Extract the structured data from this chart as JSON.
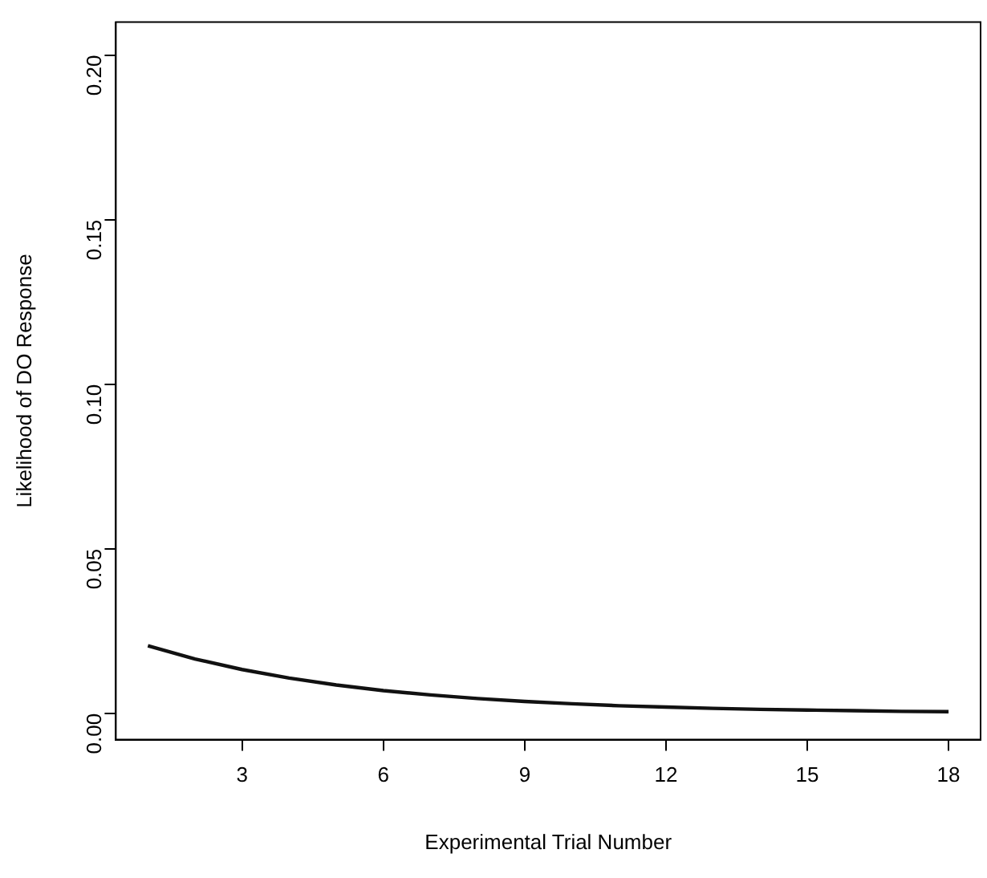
{
  "chart_data": {
    "type": "line",
    "xlabel": "Experimental Trial Number",
    "ylabel": "Likelihood of DO Response",
    "x": [
      1,
      2,
      3,
      4,
      5,
      6,
      7,
      8,
      9,
      10,
      11,
      12,
      13,
      14,
      15,
      16,
      17,
      18
    ],
    "series": [
      {
        "color": "#111111",
        "values": [
          0.0205,
          0.0165,
          0.0133,
          0.0107,
          0.0086,
          0.0069,
          0.0056,
          0.0045,
          0.0036,
          0.0029,
          0.0023,
          0.0019,
          0.0015,
          0.0012,
          0.001,
          0.0008,
          0.0006,
          0.0005
        ]
      }
    ],
    "xlim": [
      0.32,
      18.68
    ],
    "xticks": [
      3,
      6,
      9,
      12,
      15,
      18
    ],
    "ylim": [
      -0.008,
      0.21
    ],
    "yticks": [
      {
        "value": 0,
        "label": "0.00"
      },
      {
        "value": 0.05,
        "label": "0.05"
      },
      {
        "value": 0.1,
        "label": "0.10"
      },
      {
        "value": 0.15,
        "label": "0.15"
      },
      {
        "value": 0.2,
        "label": "0.20"
      }
    ],
    "grid": false,
    "legend": false,
    "marker": "none",
    "line_style": "solid"
  }
}
